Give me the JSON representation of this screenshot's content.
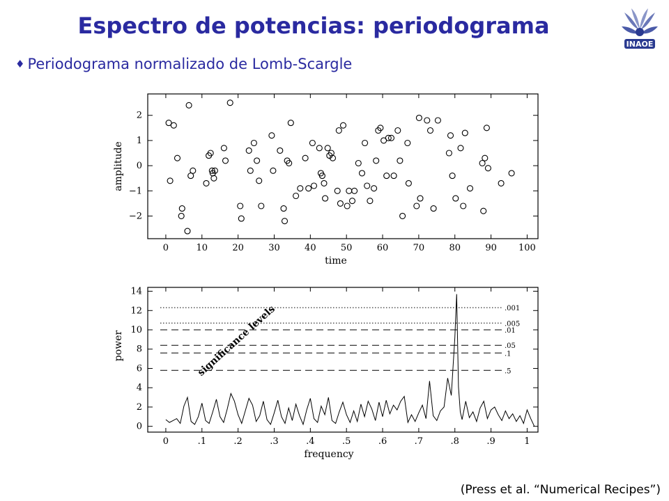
{
  "slide": {
    "title": "Espectro de potencias: periodograma",
    "bullet": "Periodograma normalizado de Lomb-Scargle",
    "bullet_symbol": "♦",
    "citation": "(Press et al. “Numerical Recipes”)",
    "logo_text": "INAOE",
    "title_color": "#2a2aa0"
  },
  "chart_data": [
    {
      "type": "scatter",
      "xlabel": "time",
      "ylabel": "amplitude",
      "xlim": [
        -5,
        103
      ],
      "ylim": [
        -2.9,
        2.85
      ],
      "xticks": [
        0,
        10,
        20,
        30,
        40,
        50,
        60,
        70,
        80,
        90,
        100
      ],
      "yticks": [
        -2,
        -1,
        0,
        1,
        2
      ],
      "ytick_labels": [
        "−2",
        "−1",
        "0",
        "1",
        "2"
      ],
      "marker": "open-circle",
      "points": [
        [
          0.8,
          1.7
        ],
        [
          1.2,
          -0.6
        ],
        [
          2.2,
          1.6
        ],
        [
          3.2,
          0.3
        ],
        [
          4.3,
          -2.0
        ],
        [
          4.5,
          -1.7
        ],
        [
          6.0,
          -2.6
        ],
        [
          6.4,
          2.4
        ],
        [
          6.9,
          -0.4
        ],
        [
          7.5,
          -0.2
        ],
        [
          11.2,
          -0.7
        ],
        [
          11.9,
          0.4
        ],
        [
          12.4,
          0.5
        ],
        [
          12.8,
          -0.2
        ],
        [
          13.0,
          -0.3
        ],
        [
          13.3,
          -0.5
        ],
        [
          13.6,
          -0.2
        ],
        [
          16.1,
          0.7
        ],
        [
          16.5,
          0.2
        ],
        [
          17.8,
          2.5
        ],
        [
          20.6,
          -1.6
        ],
        [
          20.9,
          -2.1
        ],
        [
          23.0,
          0.6
        ],
        [
          23.4,
          -0.2
        ],
        [
          24.4,
          0.9
        ],
        [
          25.2,
          0.2
        ],
        [
          25.8,
          -0.6
        ],
        [
          26.4,
          -1.6
        ],
        [
          29.3,
          1.2
        ],
        [
          29.7,
          -0.2
        ],
        [
          31.6,
          0.6
        ],
        [
          32.6,
          -1.7
        ],
        [
          32.9,
          -2.2
        ],
        [
          33.6,
          0.2
        ],
        [
          34.1,
          0.1
        ],
        [
          34.6,
          1.7
        ],
        [
          36.0,
          -1.2
        ],
        [
          37.2,
          -0.9
        ],
        [
          38.6,
          0.3
        ],
        [
          39.5,
          -0.9
        ],
        [
          40.6,
          0.9
        ],
        [
          41.0,
          -0.8
        ],
        [
          42.5,
          0.7
        ],
        [
          42.9,
          -0.3
        ],
        [
          43.3,
          -0.4
        ],
        [
          43.8,
          -0.7
        ],
        [
          44.1,
          -1.3
        ],
        [
          44.8,
          0.7
        ],
        [
          45.3,
          0.4
        ],
        [
          45.8,
          0.5
        ],
        [
          46.2,
          0.3
        ],
        [
          47.5,
          -1.0
        ],
        [
          47.9,
          1.4
        ],
        [
          48.3,
          -1.5
        ],
        [
          49.1,
          1.6
        ],
        [
          50.2,
          -1.6
        ],
        [
          50.7,
          -1.0
        ],
        [
          51.6,
          -1.4
        ],
        [
          52.2,
          -1.0
        ],
        [
          53.3,
          0.1
        ],
        [
          54.3,
          -0.3
        ],
        [
          55.1,
          0.9
        ],
        [
          55.7,
          -0.8
        ],
        [
          56.5,
          -1.4
        ],
        [
          57.6,
          -0.9
        ],
        [
          58.2,
          0.2
        ],
        [
          58.8,
          1.4
        ],
        [
          59.4,
          1.5
        ],
        [
          60.3,
          1.0
        ],
        [
          61.1,
          -0.4
        ],
        [
          61.6,
          1.1
        ],
        [
          62.4,
          1.1
        ],
        [
          63.1,
          -0.4
        ],
        [
          64.2,
          1.4
        ],
        [
          64.8,
          0.2
        ],
        [
          65.5,
          -2.0
        ],
        [
          66.9,
          0.9
        ],
        [
          67.2,
          -0.7
        ],
        [
          69.4,
          -1.6
        ],
        [
          70.1,
          1.9
        ],
        [
          70.4,
          -1.3
        ],
        [
          72.3,
          1.8
        ],
        [
          73.2,
          1.4
        ],
        [
          74.1,
          -1.7
        ],
        [
          75.3,
          1.8
        ],
        [
          78.4,
          0.5
        ],
        [
          78.8,
          1.2
        ],
        [
          79.3,
          -0.4
        ],
        [
          80.2,
          -1.3
        ],
        [
          81.6,
          0.7
        ],
        [
          82.3,
          -1.6
        ],
        [
          82.8,
          1.3
        ],
        [
          84.2,
          -0.9
        ],
        [
          87.6,
          0.1
        ],
        [
          87.9,
          -1.8
        ],
        [
          88.3,
          0.3
        ],
        [
          88.8,
          1.5
        ],
        [
          89.2,
          -0.1
        ],
        [
          92.8,
          -0.7
        ],
        [
          95.7,
          -0.3
        ]
      ]
    },
    {
      "type": "line",
      "xlabel": "frequency",
      "ylabel": "power",
      "xlim": [
        -0.05,
        1.03
      ],
      "ylim": [
        -0.6,
        14.4
      ],
      "xticks": [
        0,
        0.1,
        0.2,
        0.3,
        0.4,
        0.5,
        0.6,
        0.7,
        0.8,
        0.9,
        1
      ],
      "xtick_labels": [
        "0",
        ".1",
        ".2",
        ".3",
        ".4",
        ".5",
        ".6",
        ".7",
        ".8",
        ".9",
        "1"
      ],
      "yticks": [
        0,
        2,
        4,
        6,
        8,
        10,
        12,
        14
      ],
      "significance_title": "significance levels",
      "significance_levels": [
        {
          "label": ".001",
          "power": 12.3,
          "style": "dotted"
        },
        {
          "label": ".005",
          "power": 10.7,
          "style": "dotted"
        },
        {
          "label": ".01",
          "power": 10.0,
          "style": "dashed"
        },
        {
          "label": ".05",
          "power": 8.4,
          "style": "dashed"
        },
        {
          "label": ".1",
          "power": 7.6,
          "style": "dashed"
        },
        {
          "label": ".5",
          "power": 5.8,
          "style": "dashed"
        }
      ],
      "peak": {
        "frequency": 0.81,
        "power": 13.7
      },
      "spectrum": {
        "x": [
          0.0,
          0.01,
          0.02,
          0.03,
          0.04,
          0.05,
          0.06,
          0.07,
          0.08,
          0.09,
          0.1,
          0.11,
          0.12,
          0.13,
          0.14,
          0.15,
          0.16,
          0.17,
          0.18,
          0.19,
          0.2,
          0.21,
          0.22,
          0.23,
          0.24,
          0.25,
          0.26,
          0.27,
          0.28,
          0.29,
          0.3,
          0.31,
          0.32,
          0.33,
          0.34,
          0.35,
          0.36,
          0.37,
          0.38,
          0.39,
          0.4,
          0.41,
          0.42,
          0.43,
          0.44,
          0.45,
          0.46,
          0.47,
          0.48,
          0.49,
          0.5,
          0.51,
          0.52,
          0.53,
          0.54,
          0.55,
          0.56,
          0.57,
          0.58,
          0.59,
          0.6,
          0.61,
          0.62,
          0.63,
          0.64,
          0.65,
          0.66,
          0.67,
          0.68,
          0.69,
          0.7,
          0.71,
          0.72,
          0.73,
          0.74,
          0.75,
          0.76,
          0.77,
          0.78,
          0.79,
          0.8,
          0.805,
          0.81,
          0.815,
          0.82,
          0.83,
          0.84,
          0.85,
          0.86,
          0.87,
          0.88,
          0.89,
          0.9,
          0.91,
          0.92,
          0.93,
          0.94,
          0.95,
          0.96,
          0.97,
          0.98,
          0.99,
          1.0,
          1.01,
          1.02
        ],
        "y": [
          0.7,
          0.4,
          0.6,
          0.8,
          0.3,
          2.1,
          3.0,
          0.5,
          0.2,
          1.0,
          2.4,
          0.6,
          0.3,
          1.5,
          2.8,
          1.0,
          0.4,
          1.8,
          3.4,
          2.6,
          1.2,
          0.3,
          1.6,
          2.9,
          2.2,
          0.5,
          1.1,
          2.6,
          0.7,
          0.2,
          1.4,
          2.7,
          1.0,
          0.3,
          1.9,
          0.6,
          2.3,
          1.1,
          0.2,
          1.7,
          2.9,
          0.8,
          0.4,
          2.1,
          1.2,
          3.0,
          0.6,
          0.3,
          1.5,
          2.5,
          1.2,
          0.4,
          1.6,
          0.5,
          2.3,
          1.0,
          2.6,
          1.8,
          0.6,
          2.5,
          1.0,
          2.7,
          1.3,
          2.2,
          1.7,
          2.6,
          3.1,
          0.4,
          1.2,
          0.5,
          1.4,
          2.2,
          0.8,
          4.7,
          1.1,
          0.6,
          1.6,
          2.0,
          5.0,
          3.2,
          9.2,
          13.7,
          4.1,
          1.5,
          0.7,
          2.6,
          0.9,
          1.5,
          0.5,
          1.9,
          2.6,
          0.8,
          1.7,
          2.0,
          1.2,
          0.6,
          1.6,
          0.8,
          1.3,
          0.5,
          1.1,
          0.3,
          1.7,
          0.8,
          0.0
        ]
      }
    }
  ]
}
